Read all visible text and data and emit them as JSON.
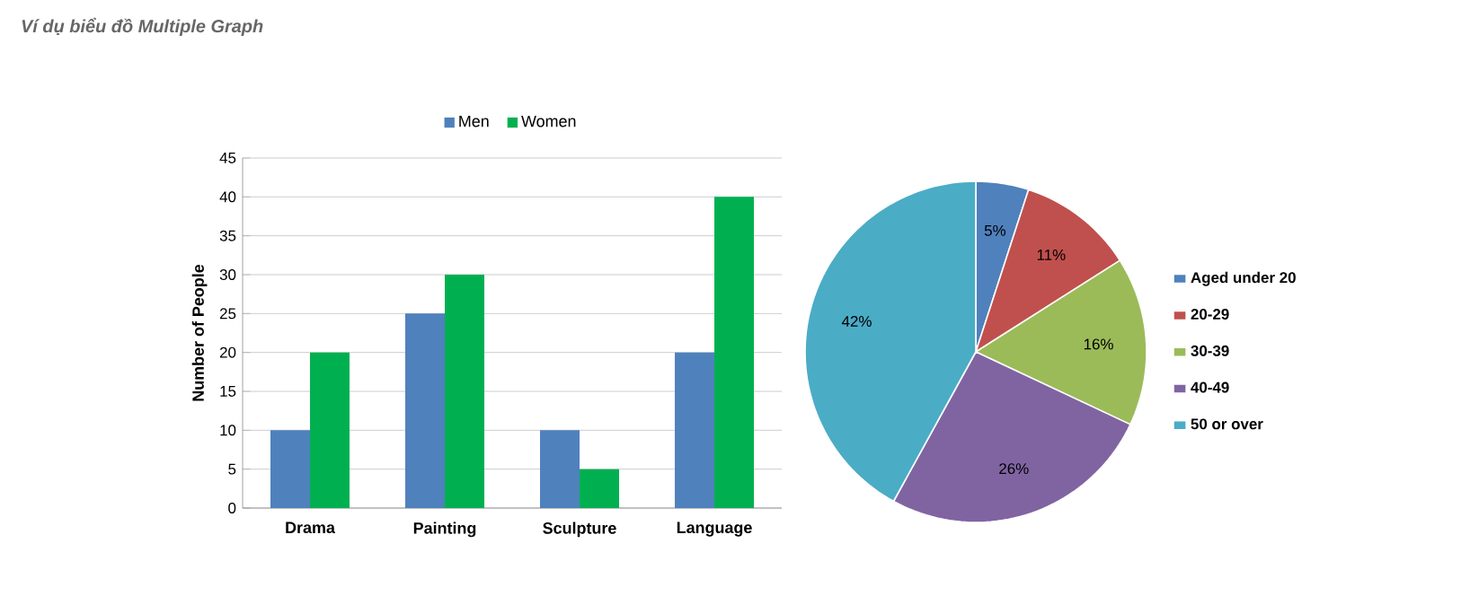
{
  "chart_data": [
    {
      "type": "bar",
      "title": "Ví dụ biểu đồ Multiple Graph",
      "categories": [
        "Drama",
        "Painting",
        "Sculpture",
        "Language"
      ],
      "ylabel": "Number of People",
      "series": [
        {
          "name": "Men",
          "color": "#4f81bd",
          "values": [
            10,
            25,
            10,
            20
          ]
        },
        {
          "name": "Women",
          "color": "#00b050",
          "values": [
            20,
            30,
            5,
            40
          ]
        }
      ],
      "ylim": [
        0,
        45
      ],
      "yticks": [
        0,
        5,
        10,
        15,
        20,
        25,
        30,
        35,
        40,
        45
      ],
      "grid": "y",
      "legend": "top"
    },
    {
      "type": "pie",
      "categories": [
        "Aged under 20",
        "20-29",
        "30-39",
        "40-49",
        "50 or over"
      ],
      "values": [
        5,
        11,
        16,
        26,
        42
      ],
      "colors": [
        "#4f81bd",
        "#c0504d",
        "#9bbb59",
        "#8064a2",
        "#4bacc6"
      ],
      "value_labels": [
        "5%",
        "11%",
        "16%",
        "26%",
        "42%"
      ],
      "legend": "right"
    }
  ]
}
